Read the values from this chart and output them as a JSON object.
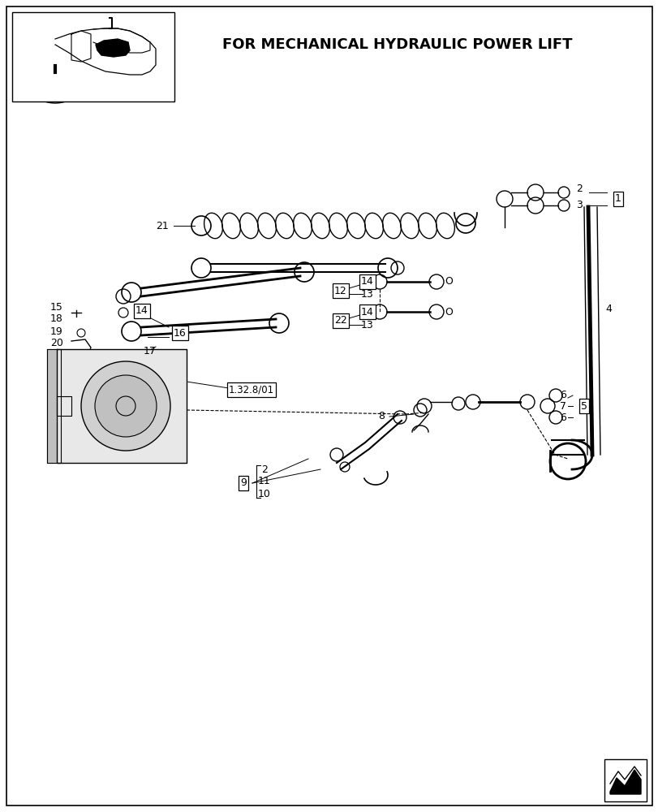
{
  "title": "FOR MECHANICAL HYDRAULIC POWER LIFT",
  "bg_color": "#ffffff",
  "figsize": [
    8.12,
    10.0
  ],
  "dpi": 100
}
